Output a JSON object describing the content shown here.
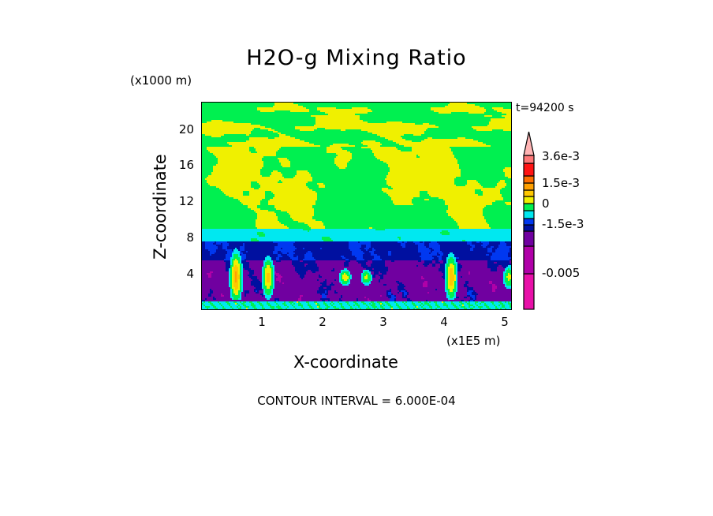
{
  "chart_data": {
    "type": "heatmap",
    "subtype": "filled-contour",
    "title": "H2O-g Mixing Ratio",
    "xlabel": "X-coordinate",
    "ylabel": "Z-coordinate",
    "x_unit": "(x1E5 m)",
    "y_unit": "(x1000 m)",
    "time_label": "t=94200 s",
    "xlim": [
      0,
      5.1
    ],
    "ylim": [
      0,
      22.8
    ],
    "xticks": [
      1,
      2,
      3,
      4,
      5
    ],
    "xtick_labels": [
      "1",
      "2",
      "3",
      "4",
      "5"
    ],
    "yticks": [
      4,
      8,
      12,
      16,
      20
    ],
    "ytick_labels": [
      "4",
      "8",
      "12",
      "16",
      "20"
    ],
    "contour_interval_label": "CONTOUR INTERVAL = 6.000E-04",
    "colorbar": {
      "labels": [
        {
          "text": "3.6e-3",
          "value": 0.0036
        },
        {
          "text": "1.5e-3",
          "value": 0.0015
        },
        {
          "text": "0",
          "value": 0
        },
        {
          "text": "-1.5e-3",
          "value": -0.0015
        },
        {
          "text": "-0.005",
          "value": -0.005
        }
      ],
      "colors_bottom_to_top": [
        "#e810a8",
        "#b000a8",
        "#7000a0",
        "#0010a0",
        "#0038f0",
        "#00e8f0",
        "#00f050",
        "#f0f000",
        "#ffc800",
        "#ffa000",
        "#ff6e00",
        "#ff1414",
        "#ff7878",
        "#ffb4b4"
      ],
      "extend": "max"
    }
  }
}
